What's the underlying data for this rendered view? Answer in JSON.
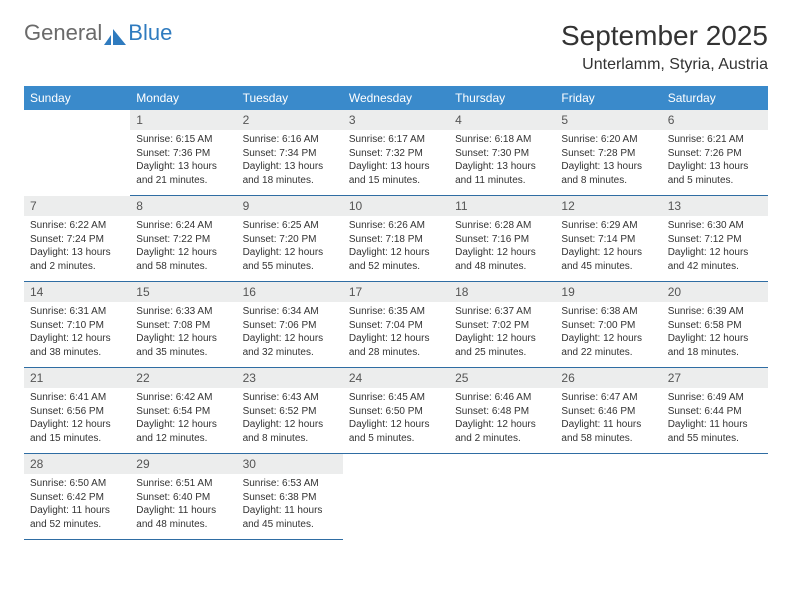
{
  "brand": {
    "general": "General",
    "blue": "Blue"
  },
  "header": {
    "month_title": "September 2025",
    "location": "Unterlamm, Styria, Austria"
  },
  "colors": {
    "header_bg": "#3a8acb",
    "daynum_bg": "#eceded",
    "rule": "#2f6da3",
    "page_bg": "#ffffff"
  },
  "weekdays": [
    "Sunday",
    "Monday",
    "Tuesday",
    "Wednesday",
    "Thursday",
    "Friday",
    "Saturday"
  ],
  "weeks": [
    [
      null,
      {
        "n": "1",
        "sr": "Sunrise: 6:15 AM",
        "ss": "Sunset: 7:36 PM",
        "d1": "Daylight: 13 hours",
        "d2": "and 21 minutes."
      },
      {
        "n": "2",
        "sr": "Sunrise: 6:16 AM",
        "ss": "Sunset: 7:34 PM",
        "d1": "Daylight: 13 hours",
        "d2": "and 18 minutes."
      },
      {
        "n": "3",
        "sr": "Sunrise: 6:17 AM",
        "ss": "Sunset: 7:32 PM",
        "d1": "Daylight: 13 hours",
        "d2": "and 15 minutes."
      },
      {
        "n": "4",
        "sr": "Sunrise: 6:18 AM",
        "ss": "Sunset: 7:30 PM",
        "d1": "Daylight: 13 hours",
        "d2": "and 11 minutes."
      },
      {
        "n": "5",
        "sr": "Sunrise: 6:20 AM",
        "ss": "Sunset: 7:28 PM",
        "d1": "Daylight: 13 hours",
        "d2": "and 8 minutes."
      },
      {
        "n": "6",
        "sr": "Sunrise: 6:21 AM",
        "ss": "Sunset: 7:26 PM",
        "d1": "Daylight: 13 hours",
        "d2": "and 5 minutes."
      }
    ],
    [
      {
        "n": "7",
        "sr": "Sunrise: 6:22 AM",
        "ss": "Sunset: 7:24 PM",
        "d1": "Daylight: 13 hours",
        "d2": "and 2 minutes."
      },
      {
        "n": "8",
        "sr": "Sunrise: 6:24 AM",
        "ss": "Sunset: 7:22 PM",
        "d1": "Daylight: 12 hours",
        "d2": "and 58 minutes."
      },
      {
        "n": "9",
        "sr": "Sunrise: 6:25 AM",
        "ss": "Sunset: 7:20 PM",
        "d1": "Daylight: 12 hours",
        "d2": "and 55 minutes."
      },
      {
        "n": "10",
        "sr": "Sunrise: 6:26 AM",
        "ss": "Sunset: 7:18 PM",
        "d1": "Daylight: 12 hours",
        "d2": "and 52 minutes."
      },
      {
        "n": "11",
        "sr": "Sunrise: 6:28 AM",
        "ss": "Sunset: 7:16 PM",
        "d1": "Daylight: 12 hours",
        "d2": "and 48 minutes."
      },
      {
        "n": "12",
        "sr": "Sunrise: 6:29 AM",
        "ss": "Sunset: 7:14 PM",
        "d1": "Daylight: 12 hours",
        "d2": "and 45 minutes."
      },
      {
        "n": "13",
        "sr": "Sunrise: 6:30 AM",
        "ss": "Sunset: 7:12 PM",
        "d1": "Daylight: 12 hours",
        "d2": "and 42 minutes."
      }
    ],
    [
      {
        "n": "14",
        "sr": "Sunrise: 6:31 AM",
        "ss": "Sunset: 7:10 PM",
        "d1": "Daylight: 12 hours",
        "d2": "and 38 minutes."
      },
      {
        "n": "15",
        "sr": "Sunrise: 6:33 AM",
        "ss": "Sunset: 7:08 PM",
        "d1": "Daylight: 12 hours",
        "d2": "and 35 minutes."
      },
      {
        "n": "16",
        "sr": "Sunrise: 6:34 AM",
        "ss": "Sunset: 7:06 PM",
        "d1": "Daylight: 12 hours",
        "d2": "and 32 minutes."
      },
      {
        "n": "17",
        "sr": "Sunrise: 6:35 AM",
        "ss": "Sunset: 7:04 PM",
        "d1": "Daylight: 12 hours",
        "d2": "and 28 minutes."
      },
      {
        "n": "18",
        "sr": "Sunrise: 6:37 AM",
        "ss": "Sunset: 7:02 PM",
        "d1": "Daylight: 12 hours",
        "d2": "and 25 minutes."
      },
      {
        "n": "19",
        "sr": "Sunrise: 6:38 AM",
        "ss": "Sunset: 7:00 PM",
        "d1": "Daylight: 12 hours",
        "d2": "and 22 minutes."
      },
      {
        "n": "20",
        "sr": "Sunrise: 6:39 AM",
        "ss": "Sunset: 6:58 PM",
        "d1": "Daylight: 12 hours",
        "d2": "and 18 minutes."
      }
    ],
    [
      {
        "n": "21",
        "sr": "Sunrise: 6:41 AM",
        "ss": "Sunset: 6:56 PM",
        "d1": "Daylight: 12 hours",
        "d2": "and 15 minutes."
      },
      {
        "n": "22",
        "sr": "Sunrise: 6:42 AM",
        "ss": "Sunset: 6:54 PM",
        "d1": "Daylight: 12 hours",
        "d2": "and 12 minutes."
      },
      {
        "n": "23",
        "sr": "Sunrise: 6:43 AM",
        "ss": "Sunset: 6:52 PM",
        "d1": "Daylight: 12 hours",
        "d2": "and 8 minutes."
      },
      {
        "n": "24",
        "sr": "Sunrise: 6:45 AM",
        "ss": "Sunset: 6:50 PM",
        "d1": "Daylight: 12 hours",
        "d2": "and 5 minutes."
      },
      {
        "n": "25",
        "sr": "Sunrise: 6:46 AM",
        "ss": "Sunset: 6:48 PM",
        "d1": "Daylight: 12 hours",
        "d2": "and 2 minutes."
      },
      {
        "n": "26",
        "sr": "Sunrise: 6:47 AM",
        "ss": "Sunset: 6:46 PM",
        "d1": "Daylight: 11 hours",
        "d2": "and 58 minutes."
      },
      {
        "n": "27",
        "sr": "Sunrise: 6:49 AM",
        "ss": "Sunset: 6:44 PM",
        "d1": "Daylight: 11 hours",
        "d2": "and 55 minutes."
      }
    ],
    [
      {
        "n": "28",
        "sr": "Sunrise: 6:50 AM",
        "ss": "Sunset: 6:42 PM",
        "d1": "Daylight: 11 hours",
        "d2": "and 52 minutes."
      },
      {
        "n": "29",
        "sr": "Sunrise: 6:51 AM",
        "ss": "Sunset: 6:40 PM",
        "d1": "Daylight: 11 hours",
        "d2": "and 48 minutes."
      },
      {
        "n": "30",
        "sr": "Sunrise: 6:53 AM",
        "ss": "Sunset: 6:38 PM",
        "d1": "Daylight: 11 hours",
        "d2": "and 45 minutes."
      },
      null,
      null,
      null,
      null
    ]
  ]
}
